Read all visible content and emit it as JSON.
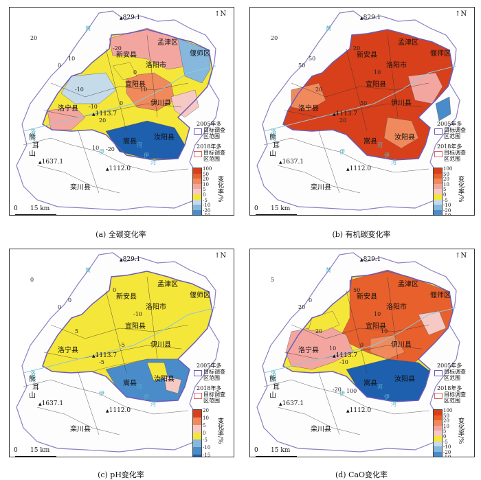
{
  "panels": [
    {
      "caption": "(a) 全碳变化率",
      "colorbar_labels": [
        "100",
        "50",
        "20",
        "10",
        "5",
        "0",
        "-5",
        "-10",
        "-20",
        "-50"
      ],
      "colorbar_colors": [
        "#d7401a",
        "#e8602c",
        "#f08a5c",
        "#f3a6a0",
        "#f7c9c4",
        "#f5e63a",
        "#c5dbe9",
        "#86b8de",
        "#4a8cc9",
        "#1e5fae"
      ],
      "contours": [
        "20",
        "0",
        "10",
        "-20",
        "0",
        "0",
        "20",
        "-10",
        "-10",
        "10",
        "10",
        "-20"
      ]
    },
    {
      "caption": "(b) 有机碳变化率",
      "colorbar_labels": [
        "100",
        "50",
        "20",
        "10",
        "5",
        "0",
        "-5",
        "-10",
        "-20",
        "-50"
      ],
      "colorbar_colors": [
        "#d7401a",
        "#e8602c",
        "#f08a5c",
        "#f3a6a0",
        "#f7c9c4",
        "#f5e63a",
        "#c5dbe9",
        "#86b8de",
        "#4a8cc9",
        "#1e5fae"
      ],
      "contours": [
        "20",
        "50",
        "50",
        "20",
        "10",
        "50",
        "20",
        "20"
      ]
    },
    {
      "caption": "(c) pH变化率",
      "colorbar_labels": [
        "20",
        "10",
        "5",
        "0",
        "-5",
        "-10",
        "-15"
      ],
      "colorbar_colors": [
        "#d7401a",
        "#f08a5c",
        "#f7c9c4",
        "#f5e63a",
        "#86b8de",
        "#4a8cc9",
        "#1e5fae"
      ],
      "contours": [
        "0",
        "0",
        "0",
        "0",
        "-10",
        "-5",
        "-5",
        "5"
      ]
    },
    {
      "caption": "(d) CaO变化率",
      "colorbar_labels": [
        "100",
        "50",
        "20",
        "10",
        "5",
        "0",
        "-5",
        "-10",
        "-20",
        "-50"
      ],
      "colorbar_colors": [
        "#d7401a",
        "#e8602c",
        "#f08a5c",
        "#f3a6a0",
        "#f7c9c4",
        "#f5e63a",
        "#c5dbe9",
        "#86b8de",
        "#4a8cc9",
        "#1e5fae"
      ],
      "contours": [
        "5",
        "20",
        "0",
        "50",
        "10",
        "0",
        "-10",
        "20",
        "10",
        "10",
        "-20",
        "100"
      ]
    }
  ],
  "places": {
    "xinan": "新安县",
    "mengjin": "孟津区",
    "yanshi": "偃师区",
    "luoyang": "洛阳市",
    "yiyang": "宜阳县",
    "luoning": "洛宁县",
    "yichuan": "伊川县",
    "songxian": "嵩县",
    "ruyang": "汝阳县",
    "luanchuan": "栾川县",
    "xiong_1": "熊",
    "xiong_2": "耳",
    "xiong_3": "山"
  },
  "peaks": {
    "p1": "829.1",
    "p2": "1113.7",
    "p3": "1637.1",
    "p4": "1112.0"
  },
  "north_label": "N",
  "rivers": [
    "黄",
    "洛",
    "河",
    "伊",
    "河",
    "伊",
    "河"
  ],
  "legend": {
    "item_2005": [
      "2005年多",
      "目标调查",
      "区范围"
    ],
    "item_2018": [
      "2018年多",
      "目标调查",
      "区范围"
    ],
    "color_2005": "#6b5bb8",
    "color_2018": "#e06060"
  },
  "colorbar_title": "变化率/%",
  "scale": {
    "zero": "0",
    "label": "15 km"
  }
}
